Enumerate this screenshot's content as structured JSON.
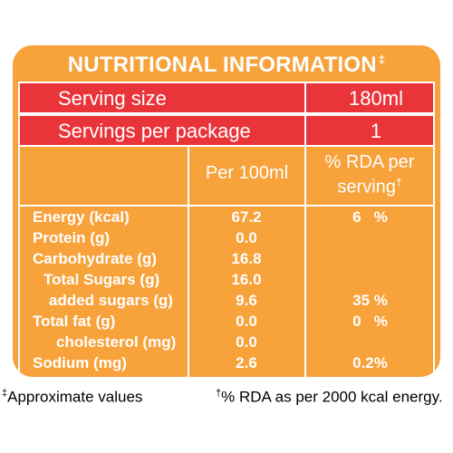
{
  "title": "NUTRITIONAL INFORMATION",
  "title_mark": "‡",
  "serving_size": {
    "label": "Serving size",
    "value": "180ml"
  },
  "servings_per_package": {
    "label": "Servings per package",
    "value": "1"
  },
  "columns": {
    "per100": "Per 100ml",
    "rda_line1": "% RDA per",
    "rda_line2": "serving",
    "rda_mark": "†"
  },
  "rows": [
    {
      "label": "Energy (kcal)",
      "value": "67.2",
      "rda": "6   %"
    },
    {
      "label": "Protein (g)",
      "value": "0.0",
      "rda": ""
    },
    {
      "label": "Carbohydrate (g)",
      "value": "16.8",
      "rda": ""
    },
    {
      "label": "Total Sugars (g)",
      "value": "16.0",
      "rda": ""
    },
    {
      "label": "added sugars (g)",
      "value": "9.6",
      "rda": "35 %"
    },
    {
      "label": "Total fat (g)",
      "value": "0.0",
      "rda": "0   %"
    },
    {
      "label": "cholesterol (mg)",
      "value": "0.0",
      "rda": ""
    },
    {
      "label": "Sodium (mg)",
      "value": "2.6",
      "rda": "0.2%"
    }
  ],
  "footnotes": {
    "approx_mark": "‡",
    "approx": "Approximate values",
    "rda_mark": "†",
    "rda": "% RDA as per 2000 kcal energy."
  },
  "colors": {
    "panel": "#f7a23a",
    "red": "#e9343a",
    "text": "#ffffff"
  }
}
